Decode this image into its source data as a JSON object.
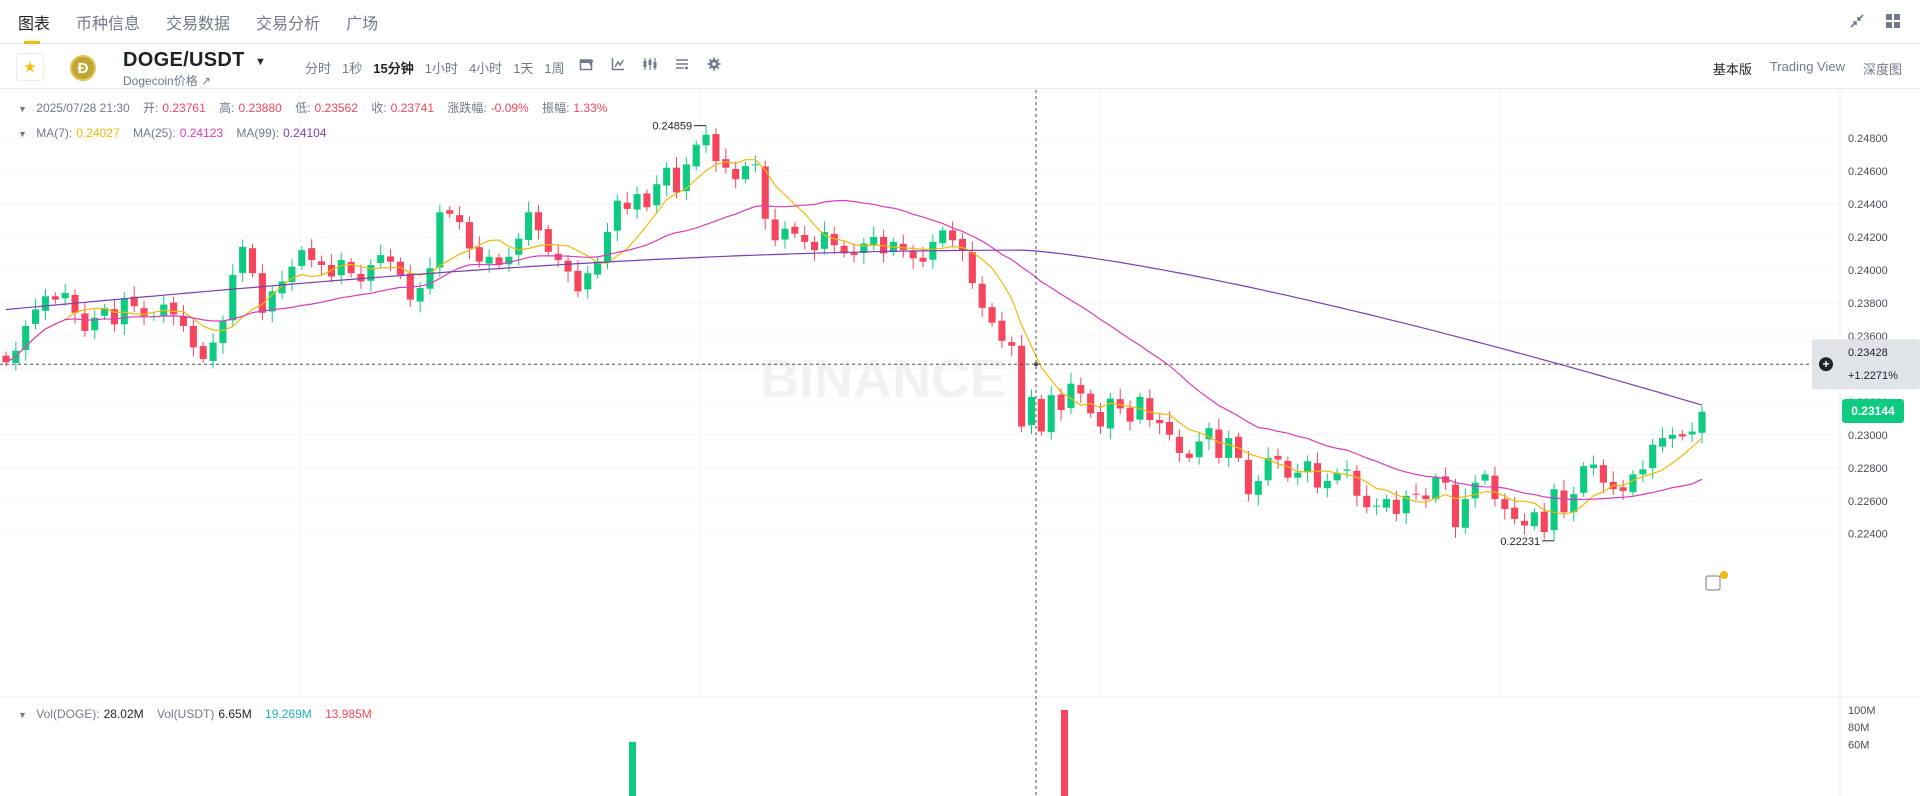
{
  "nav": {
    "tabs": [
      "图表",
      "币种信息",
      "交易数据",
      "交易分析",
      "广场"
    ],
    "active": 0
  },
  "symbol": {
    "pair": "DOGE/USDT",
    "subtitle": "Dogecoin价格 ↗",
    "logo_glyph": "Ð",
    "intervals": [
      "分时",
      "1秒",
      "15分钟",
      "1小时",
      "4小时",
      "1天",
      "1周"
    ],
    "active_interval": 2,
    "views": [
      "基本版",
      "Trading View",
      "深度图"
    ],
    "active_view": 0
  },
  "ohlc": {
    "datetime": "2025/07/28 21:30",
    "open_label": "开:",
    "open": "0.23761",
    "high_label": "高:",
    "high": "0.23880",
    "low_label": "低:",
    "low": "0.23562",
    "close_label": "收:",
    "close": "0.23741",
    "change_label": "涨跌幅:",
    "change": "-0.09%",
    "amp_label": "振幅:",
    "amp": "1.33%"
  },
  "ma": {
    "ma7_label": "MA(7):",
    "ma7": "0.24027",
    "ma25_label": "MA(25):",
    "ma25": "0.24123",
    "ma99_label": "MA(99):",
    "ma99": "0.24104"
  },
  "volume_legend": {
    "doge_label": "Vol(DOGE):",
    "doge": "28.02M",
    "usdt_label": "Vol(USDT)",
    "usdt": "6.65M",
    "v1": "19.269M",
    "v2": "13.985M"
  },
  "price_axis": [
    "0.24800",
    "0.24600",
    "0.24400",
    "0.24200",
    "0.24000",
    "0.23800",
    "0.23600",
    "0.23400",
    "0.23200",
    "0.23000",
    "0.22800",
    "0.22600",
    "0.22400"
  ],
  "volume_axis": [
    "100M",
    "80M",
    "60M"
  ],
  "crosshair": {
    "price": "0.23428",
    "pct": "+1.2271%"
  },
  "current_price": "0.23144",
  "high_marker": "0.24859",
  "low_marker": "0.22231",
  "watermark": "BINANCE",
  "colors": {
    "up": "#0ecb81",
    "down": "#f6465d",
    "ma7": "#f0b90b",
    "ma25": "#d63dbb",
    "ma99": "#7a3fb0"
  },
  "chart_data": {
    "type": "candlestick",
    "ylim": [
      0.2218,
      0.2497
    ],
    "closes": [
      0.2344,
      0.2351,
      0.2366,
      0.2376,
      0.2384,
      0.2382,
      0.2386,
      0.2374,
      0.2363,
      0.2371,
      0.2377,
      0.2367,
      0.2383,
      0.2378,
      0.2372,
      0.2372,
      0.2379,
      0.2373,
      0.2366,
      0.2353,
      0.2346,
      0.2356,
      0.2369,
      0.2397,
      0.2414,
      0.2398,
      0.2374,
      0.2387,
      0.2393,
      0.2402,
      0.2412,
      0.2406,
      0.2403,
      0.2396,
      0.2406,
      0.2398,
      0.2393,
      0.2403,
      0.2409,
      0.2405,
      0.2397,
      0.2382,
      0.2389,
      0.2401,
      0.2435,
      0.2434,
      0.2429,
      0.2413,
      0.2405,
      0.2408,
      0.2403,
      0.2408,
      0.2419,
      0.2435,
      0.2424,
      0.2411,
      0.2406,
      0.2399,
      0.2387,
      0.2398,
      0.2405,
      0.2423,
      0.2442,
      0.2437,
      0.2446,
      0.2438,
      0.2452,
      0.2462,
      0.2447,
      0.2464,
      0.2476,
      0.2482,
      0.2466,
      0.2462,
      0.2455,
      0.2463,
      0.2464,
      0.2431,
      0.2418,
      0.2425,
      0.2422,
      0.2417,
      0.2412,
      0.2423,
      0.2415,
      0.241,
      0.2409,
      0.2416,
      0.242,
      0.241,
      0.2417,
      0.2412,
      0.2407,
      0.2405,
      0.2417,
      0.2424,
      0.2418,
      0.2412,
      0.2392,
      0.2377,
      0.2368,
      0.2357,
      0.2354,
      0.2305,
      0.2323,
      0.2302,
      0.2324,
      0.2315,
      0.2331,
      0.2325,
      0.2313,
      0.2305,
      0.2322,
      0.2316,
      0.2308,
      0.2323,
      0.2309,
      0.2307,
      0.23,
      0.2289,
      0.2286,
      0.2296,
      0.2304,
      0.2286,
      0.2298,
      0.2286,
      0.2264,
      0.2272,
      0.2286,
      0.2285,
      0.2274,
      0.2277,
      0.2284,
      0.2268,
      0.2272,
      0.2277,
      0.2279,
      0.2263,
      0.2256,
      0.2257,
      0.2261,
      0.2252,
      0.2263,
      0.2264,
      0.2261,
      0.2274,
      0.2271,
      0.2244,
      0.2261,
      0.2271,
      0.2276,
      0.2261,
      0.2255,
      0.2249,
      0.2245,
      0.2253,
      0.2241,
      0.2267,
      0.2253,
      0.2264,
      0.2281,
      0.2282,
      0.2271,
      0.2267,
      0.2266,
      0.2276,
      0.2279,
      0.2294,
      0.2298,
      0.23,
      0.2299,
      0.2302,
      0.2314
    ],
    "ma99_start": 0.2376,
    "ma99_end": 0.2318
  }
}
